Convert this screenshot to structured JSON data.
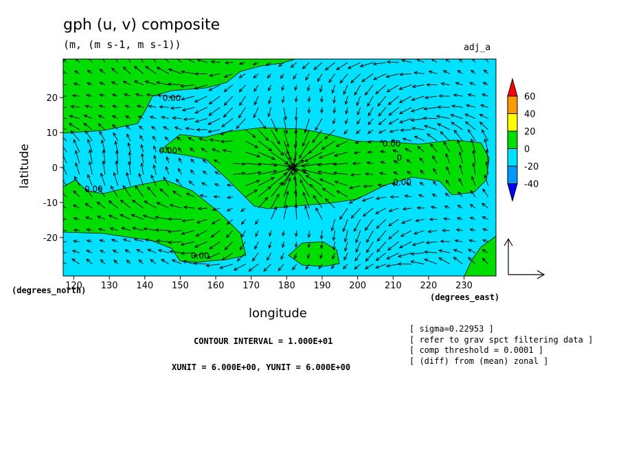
{
  "chart_data": {
    "type": "contour",
    "title": "gph (u, v) composite",
    "units_label": "(m, (m s-1, m s-1))",
    "tag": "adj_a",
    "xlabel": "longitude",
    "ylabel": "latitude",
    "x_units": "(degrees_east)",
    "y_units": "(degrees_north)",
    "xlim": [
      117,
      239
    ],
    "ylim": [
      -31,
      31
    ],
    "x_ticks": [
      120,
      130,
      140,
      150,
      160,
      170,
      180,
      190,
      200,
      210,
      220,
      230
    ],
    "y_ticks": [
      20,
      10,
      0,
      -10,
      -20
    ],
    "contour_labels": [
      {
        "text": "0.00",
        "lon": 145,
        "lat": 19
      },
      {
        "text": "0.00",
        "lon": 144,
        "lat": 4
      },
      {
        "text": "0.00",
        "lon": 123,
        "lat": -7
      },
      {
        "text": "0.00",
        "lon": 153,
        "lat": -26
      },
      {
        "text": "0.00",
        "lon": 207,
        "lat": 6
      },
      {
        "text": "0.00",
        "lon": 210,
        "lat": -5
      },
      {
        "text": "0",
        "lon": 211,
        "lat": 2
      }
    ],
    "colorbar": {
      "levels": [
        "60",
        "40",
        "20",
        "0",
        "-20",
        "-40"
      ],
      "colors": [
        "#ff0000",
        "#ff9900",
        "#ffff00",
        "#00dd00",
        "#00e0ff",
        "#0099ff",
        "#0000ff"
      ]
    },
    "contour_interval": "CONTOUR INTERVAL = 1.000E+01",
    "vector_units": "XUNIT = 6.000E+00, YUNIT = 6.000E+00",
    "notes": [
      "[ sigma=0.22953 ]",
      "[ refer to grav spct filtering data ]",
      "[ comp threshold = 0.0001 ]",
      "[ (diff) from (mean) zonal ]"
    ],
    "field_colors": {
      "positive": "#00dd00",
      "negative": "#00e0ff"
    }
  }
}
